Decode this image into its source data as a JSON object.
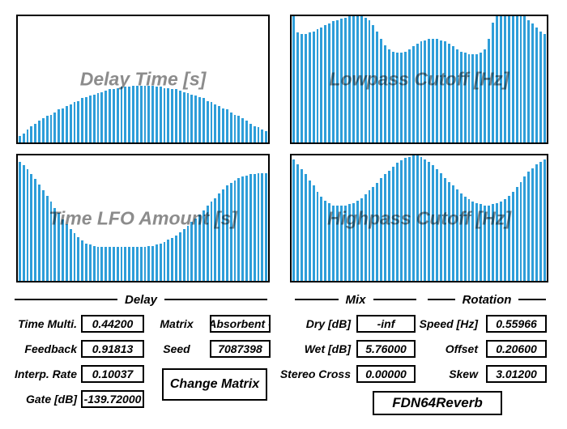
{
  "colors": {
    "bar_blue": "#2e9ed9",
    "panel_border": "#000000",
    "title_grey": "#8c8c8c",
    "background": "#ffffff"
  },
  "chart_data": [
    {
      "type": "bar",
      "title": "Delay Time [s]",
      "ylim": [
        0,
        1
      ],
      "values": [
        0.05,
        0.07,
        0.1,
        0.13,
        0.15,
        0.17,
        0.19,
        0.21,
        0.22,
        0.24,
        0.26,
        0.27,
        0.29,
        0.3,
        0.32,
        0.33,
        0.35,
        0.36,
        0.37,
        0.38,
        0.39,
        0.4,
        0.41,
        0.42,
        0.42,
        0.43,
        0.44,
        0.44,
        0.44,
        0.45,
        0.45,
        0.45,
        0.45,
        0.45,
        0.45,
        0.44,
        0.44,
        0.43,
        0.43,
        0.42,
        0.42,
        0.41,
        0.4,
        0.39,
        0.38,
        0.37,
        0.36,
        0.35,
        0.33,
        0.32,
        0.3,
        0.29,
        0.27,
        0.26,
        0.24,
        0.22,
        0.21,
        0.19,
        0.17,
        0.15,
        0.13,
        0.12,
        0.1,
        0.09
      ]
    },
    {
      "type": "bar",
      "title": "Lowpass Cutoff [Hz]",
      "ylim": [
        0,
        1
      ],
      "values": [
        1.0,
        0.87,
        0.86,
        0.86,
        0.87,
        0.88,
        0.9,
        0.91,
        0.93,
        0.94,
        0.96,
        0.97,
        0.98,
        0.99,
        1.0,
        1.0,
        1.0,
        1.0,
        0.99,
        0.97,
        0.93,
        0.88,
        0.82,
        0.77,
        0.74,
        0.72,
        0.71,
        0.71,
        0.72,
        0.74,
        0.76,
        0.78,
        0.8,
        0.81,
        0.82,
        0.82,
        0.82,
        0.81,
        0.8,
        0.78,
        0.76,
        0.74,
        0.72,
        0.71,
        0.7,
        0.7,
        0.7,
        0.71,
        0.74,
        0.82,
        0.95,
        1.0,
        1.0,
        1.0,
        1.0,
        1.0,
        1.0,
        1.0,
        1.0,
        0.97,
        0.94,
        0.91,
        0.88,
        0.86
      ]
    },
    {
      "type": "bar",
      "title": "Time LFO Amount [s]",
      "ylim": [
        0,
        1
      ],
      "values": [
        0.95,
        0.92,
        0.89,
        0.85,
        0.81,
        0.77,
        0.72,
        0.68,
        0.63,
        0.58,
        0.54,
        0.49,
        0.45,
        0.41,
        0.38,
        0.35,
        0.32,
        0.3,
        0.29,
        0.28,
        0.27,
        0.27,
        0.27,
        0.27,
        0.27,
        0.27,
        0.27,
        0.27,
        0.27,
        0.27,
        0.27,
        0.27,
        0.27,
        0.28,
        0.28,
        0.29,
        0.3,
        0.31,
        0.33,
        0.34,
        0.36,
        0.39,
        0.41,
        0.44,
        0.47,
        0.5,
        0.53,
        0.56,
        0.6,
        0.63,
        0.66,
        0.7,
        0.73,
        0.76,
        0.78,
        0.8,
        0.82,
        0.83,
        0.84,
        0.85,
        0.85,
        0.86,
        0.86,
        0.86
      ]
    },
    {
      "type": "bar",
      "title": "Highpass Cutoff [Hz]",
      "ylim": [
        0,
        1
      ],
      "values": [
        0.97,
        0.93,
        0.89,
        0.85,
        0.8,
        0.76,
        0.71,
        0.67,
        0.64,
        0.62,
        0.6,
        0.6,
        0.6,
        0.6,
        0.61,
        0.62,
        0.64,
        0.66,
        0.69,
        0.72,
        0.75,
        0.78,
        0.82,
        0.85,
        0.88,
        0.91,
        0.94,
        0.96,
        0.98,
        0.99,
        1.0,
        1.0,
        0.99,
        0.97,
        0.95,
        0.92,
        0.89,
        0.86,
        0.82,
        0.79,
        0.76,
        0.73,
        0.7,
        0.67,
        0.65,
        0.63,
        0.62,
        0.61,
        0.6,
        0.6,
        0.61,
        0.62,
        0.63,
        0.65,
        0.68,
        0.71,
        0.75,
        0.79,
        0.83,
        0.87,
        0.9,
        0.93,
        0.95,
        0.97
      ]
    }
  ],
  "groups": {
    "delay": {
      "label": "Delay",
      "fields": [
        {
          "label": "Time Multi.",
          "value": "0.44200"
        },
        {
          "label": "Feedback",
          "value": "0.91813"
        },
        {
          "label": "Interp. Rate",
          "value": "0.10037"
        },
        {
          "label": "Gate [dB]",
          "value": "-139.72000"
        }
      ],
      "matrix_label": "Matrix",
      "matrix_value": "Absorbent -",
      "seed_label": "Seed",
      "seed_value": "7087398",
      "change_matrix_button": "Change Matrix"
    },
    "mix": {
      "label": "Mix",
      "fields": [
        {
          "label": "Dry [dB]",
          "value": "-inf"
        },
        {
          "label": "Wet [dB]",
          "value": "5.76000"
        },
        {
          "label": "Stereo Cross",
          "value": "0.00000"
        }
      ]
    },
    "rotation": {
      "label": "Rotation",
      "fields": [
        {
          "label": "Speed [Hz]",
          "value": "0.55966"
        },
        {
          "label": "Offset",
          "value": "0.20600"
        },
        {
          "label": "Skew",
          "value": "3.01200"
        }
      ]
    }
  },
  "plugin_name": "FDN64Reverb"
}
